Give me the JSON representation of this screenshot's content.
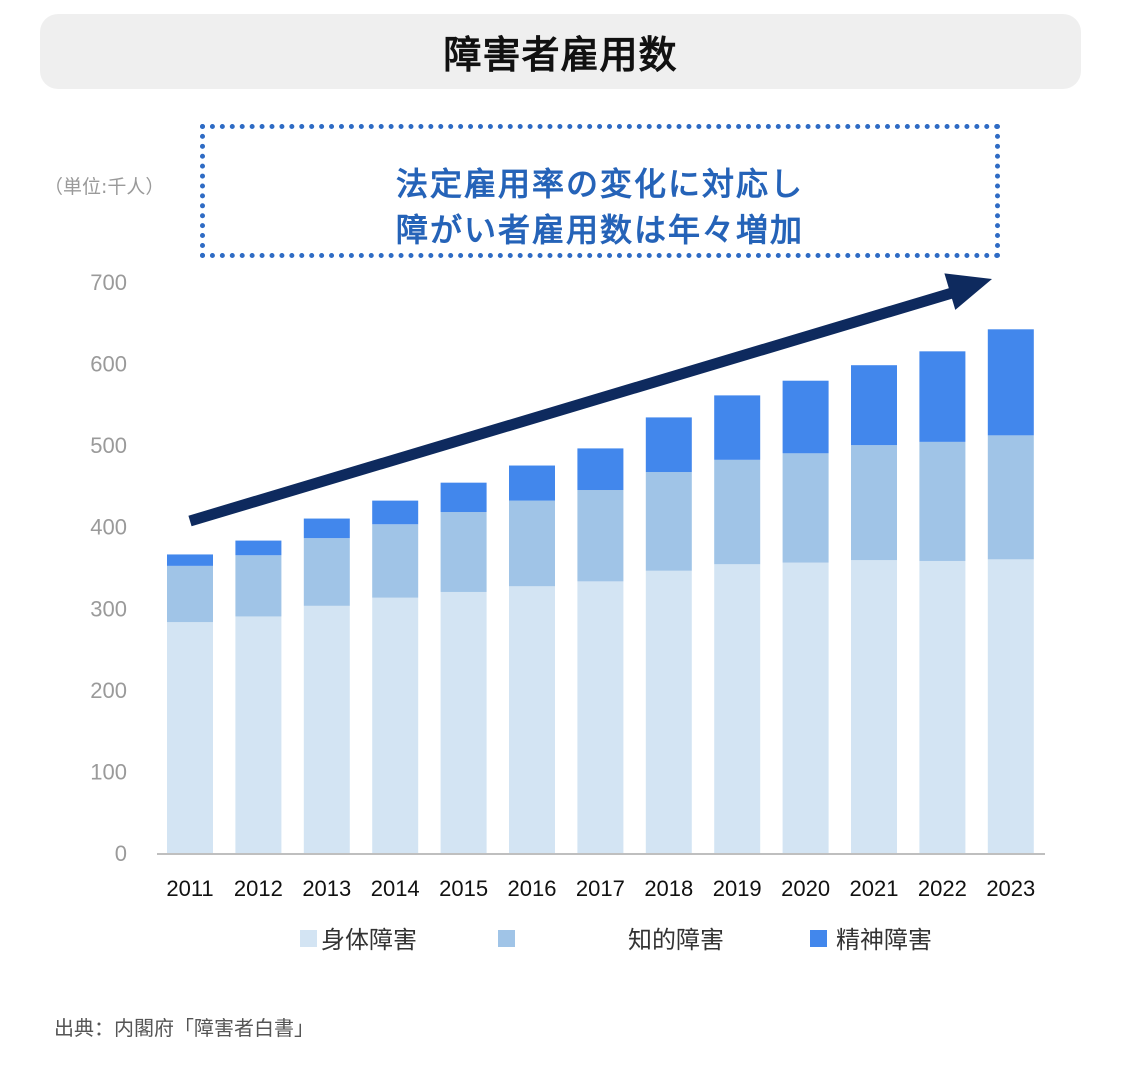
{
  "title": "障害者雇用数",
  "unit_label": "（単位:千人）",
  "callout": {
    "line1": "法定雇用率の変化に対応し",
    "line2": "障がい者雇用数は年々増加"
  },
  "source": "出典：内閣府「障害者白書」",
  "colors": {
    "physical": "#d3e4f3",
    "intellectual": "#a0c4e7",
    "mental": "#4287ec",
    "arrow": "#0e2a5e",
    "callout": "#2e6bc4"
  },
  "chart_data": {
    "type": "bar",
    "stacked": true,
    "categories": [
      "2011",
      "2012",
      "2013",
      "2014",
      "2015",
      "2016",
      "2017",
      "2018",
      "2019",
      "2020",
      "2021",
      "2022",
      "2023"
    ],
    "series": [
      {
        "name": "身体障害",
        "values": [
          283,
          290,
          303,
          313,
          320,
          327,
          333,
          346,
          354,
          356,
          359,
          358,
          360
        ]
      },
      {
        "name": "知的障害",
        "values": [
          69,
          75,
          83,
          90,
          98,
          105,
          112,
          121,
          128,
          134,
          141,
          146,
          152
        ]
      },
      {
        "name": "精神障害",
        "values": [
          14,
          18,
          24,
          29,
          36,
          43,
          51,
          67,
          79,
          89,
          98,
          111,
          130
        ]
      }
    ],
    "yticks": [
      "0",
      "100",
      "200",
      "300",
      "400",
      "500",
      "600",
      "700"
    ],
    "ylim": [
      0,
      700
    ],
    "legend": [
      "身体障害",
      "知的障害",
      "精神障害"
    ],
    "legend_position": "bottom",
    "annotation": "upward trend arrow"
  }
}
